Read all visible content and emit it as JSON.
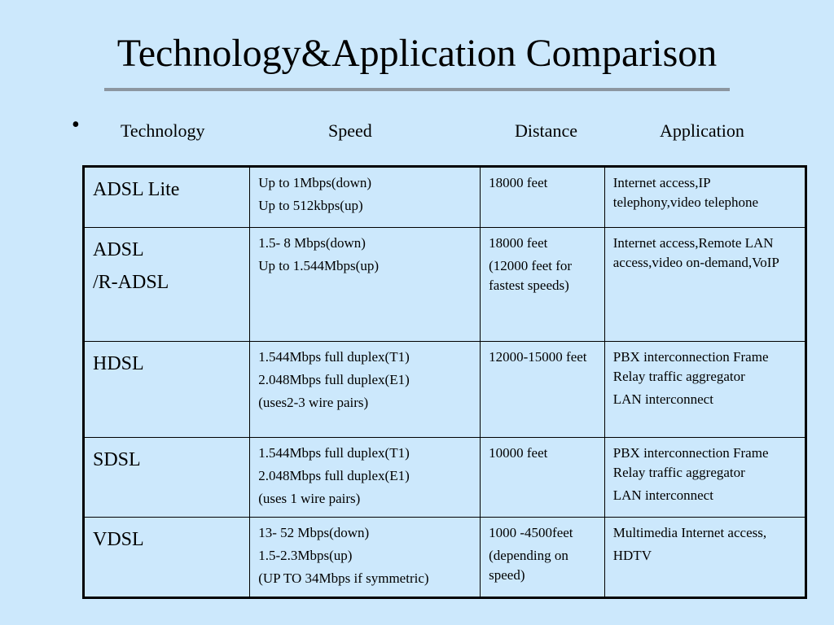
{
  "title": "Technology&Application Comparison",
  "bullet": "•",
  "headers": [
    "Technology",
    "Speed",
    "Distance",
    "Application"
  ],
  "rows": [
    {
      "technology": [
        "ADSL Lite"
      ],
      "speed": [
        "Up to 1Mbps(down)",
        "Up to 512kbps(up)"
      ],
      "distance": [
        "18000 feet"
      ],
      "application": [
        "Internet access,IP telephony,video telephone"
      ]
    },
    {
      "technology": [
        "ADSL",
        "/R-ADSL"
      ],
      "speed": [
        "1.5- 8 Mbps(down)",
        "Up to 1.544Mbps(up)"
      ],
      "distance": [
        "18000 feet",
        "(12000 feet for fastest speeds)"
      ],
      "application": [
        "Internet access,Remote LAN access,video on-demand,VoIP"
      ]
    },
    {
      "technology": [
        "HDSL"
      ],
      "speed": [
        "1.544Mbps full duplex(T1)",
        "2.048Mbps full duplex(E1)",
        "(uses2-3 wire pairs)"
      ],
      "distance": [
        "12000-15000 feet"
      ],
      "application": [
        "PBX interconnection Frame Relay traffic aggregator",
        "LAN interconnect"
      ]
    },
    {
      "technology": [
        "SDSL"
      ],
      "speed": [
        "1.544Mbps full duplex(T1)",
        "2.048Mbps full duplex(E1)",
        "(uses 1 wire pairs)"
      ],
      "distance": [
        "10000 feet"
      ],
      "application": [
        "PBX interconnection Frame Relay traffic aggregator",
        "LAN interconnect"
      ]
    },
    {
      "technology": [
        "VDSL"
      ],
      "speed": [
        "13- 52 Mbps(down)",
        "1.5-2.3Mbps(up)",
        "(UP TO 34Mbps if symmetric)"
      ],
      "distance": [
        "1000 -4500feet",
        "(depending on speed)"
      ],
      "application": [
        "Multimedia Internet access,",
        "HDTV"
      ]
    }
  ]
}
